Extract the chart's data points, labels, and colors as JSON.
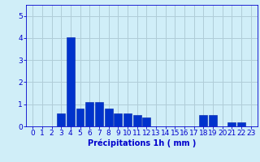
{
  "categories": [
    0,
    1,
    2,
    3,
    4,
    5,
    6,
    7,
    8,
    9,
    10,
    11,
    12,
    13,
    14,
    15,
    16,
    17,
    18,
    19,
    20,
    21,
    22,
    23
  ],
  "values": [
    0,
    0,
    0,
    0.6,
    4.05,
    0.8,
    1.1,
    1.1,
    0.8,
    0.6,
    0.6,
    0.5,
    0.4,
    0,
    0,
    0,
    0,
    0,
    0.5,
    0.5,
    0,
    0.2,
    0.2,
    0
  ],
  "bar_color": "#0033cc",
  "bar_edge_color": "#0022aa",
  "background_color": "#d0eef8",
  "grid_color": "#b0ccd8",
  "xlabel": "Précipitations 1h ( mm )",
  "ylim": [
    0,
    5.5
  ],
  "yticks": [
    0,
    1,
    2,
    3,
    4,
    5
  ],
  "tick_color": "#0000cc",
  "label_color": "#0000cc",
  "label_fontsize": 7,
  "tick_fontsize": 6.5
}
